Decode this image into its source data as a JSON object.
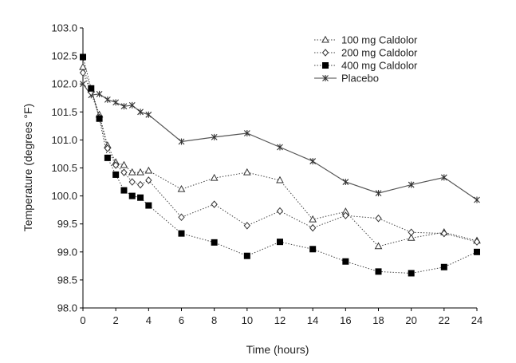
{
  "header_fragment": "",
  "chart_data": {
    "type": "line",
    "title": "",
    "xlabel": "Time (hours)",
    "ylabel": "Temperature (degrees °F)",
    "xlim": [
      0,
      24
    ],
    "ylim": [
      98.0,
      103.0
    ],
    "xticks": [
      "0",
      "2",
      "4",
      "6",
      "8",
      "10",
      "12",
      "14",
      "16",
      "18",
      "20",
      "22",
      "24"
    ],
    "yticks": [
      "98.0",
      "98.5",
      "99.0",
      "99.5",
      "100.0",
      "100.5",
      "101.0",
      "101.5",
      "102.0",
      "102.5",
      "103.0"
    ],
    "grid": false,
    "legend_position": "top-right",
    "series": [
      {
        "name": "100 mg Caldolor",
        "marker": "open-triangle",
        "line": "dotted",
        "x": [
          0,
          0.5,
          1,
          1.5,
          2,
          2.5,
          3,
          3.5,
          4,
          6,
          8,
          10,
          12,
          14,
          16,
          18,
          20,
          22,
          24
        ],
        "values": [
          102.3,
          101.9,
          101.45,
          100.9,
          100.6,
          100.55,
          100.42,
          100.42,
          100.45,
          100.12,
          100.32,
          100.42,
          100.28,
          99.58,
          99.72,
          99.1,
          99.25,
          99.35,
          99.2
        ]
      },
      {
        "name": "200 mg Caldolor",
        "marker": "open-diamond",
        "line": "dotted",
        "x": [
          0,
          0.5,
          1,
          1.5,
          2,
          2.5,
          3,
          3.5,
          4,
          6,
          8,
          10,
          12,
          14,
          16,
          18,
          20,
          22,
          24
        ],
        "values": [
          102.2,
          101.85,
          101.4,
          100.85,
          100.55,
          100.42,
          100.25,
          100.2,
          100.28,
          99.62,
          99.85,
          99.47,
          99.73,
          99.43,
          99.65,
          99.6,
          99.35,
          99.33,
          99.18
        ]
      },
      {
        "name": "400 mg Caldolor",
        "marker": "filled-square",
        "line": "dotted",
        "x": [
          0,
          0.5,
          1,
          1.5,
          2,
          2.5,
          3,
          3.5,
          4,
          6,
          8,
          10,
          12,
          14,
          16,
          18,
          20,
          22,
          24
        ],
        "values": [
          102.48,
          101.92,
          101.38,
          100.68,
          100.38,
          100.1,
          100.0,
          99.97,
          99.83,
          99.33,
          99.17,
          98.93,
          99.18,
          99.05,
          98.83,
          98.65,
          98.62,
          98.73,
          99.0
        ]
      },
      {
        "name": "Placebo",
        "marker": "star",
        "line": "solid",
        "x": [
          0,
          0.5,
          1,
          1.5,
          2,
          2.5,
          3,
          3.5,
          4,
          6,
          8,
          10,
          12,
          14,
          16,
          18,
          20,
          22,
          24
        ],
        "values": [
          102.0,
          101.8,
          101.82,
          101.72,
          101.67,
          101.6,
          101.62,
          101.5,
          101.45,
          100.97,
          101.05,
          101.12,
          100.87,
          100.62,
          100.25,
          100.05,
          100.2,
          100.33,
          99.93
        ]
      }
    ]
  }
}
